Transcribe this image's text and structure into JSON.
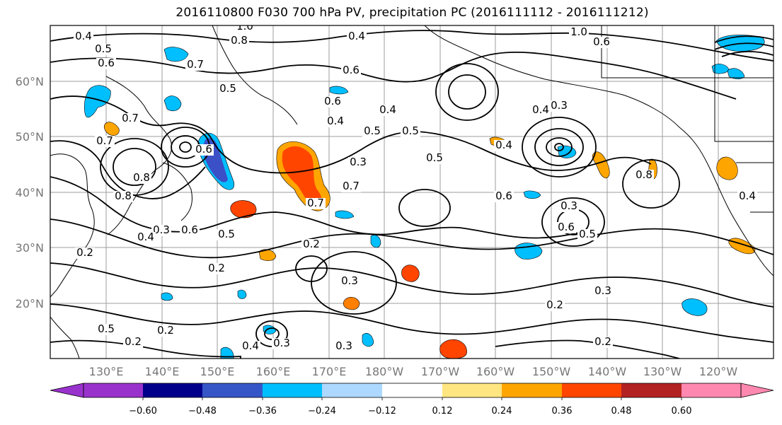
{
  "title": "2016110800 F030 700 hPa PV, precipitation PC (2016111112 - 2016111212)",
  "map": {
    "lat_ticks": [
      "60°N",
      "50°N",
      "40°N",
      "30°N",
      "20°N"
    ],
    "lon_ticks": [
      "130°E",
      "140°E",
      "150°E",
      "160°E",
      "170°E",
      "180°W",
      "170°W",
      "160°W",
      "150°W",
      "140°W",
      "130°W",
      "120°W"
    ],
    "contour_labels": [
      "0.4",
      "0.5",
      "1.0",
      "0.8",
      "0.4",
      "1.0",
      "0.6",
      "0.7",
      "0.6",
      "0.5",
      "0.6",
      "0.6",
      "0.7",
      "0.7",
      "0.6",
      "0.8",
      "0.8",
      "0.4",
      "0.5",
      "0.4",
      "0.5",
      "0.3",
      "0.7",
      "0.5",
      "0.4",
      "0.7",
      "0.6",
      "0.4",
      "0.3",
      "0.6",
      "0.3",
      "0.5",
      "0.3",
      "0.6",
      "0.5",
      "0.4",
      "0.2",
      "0.3",
      "0.2",
      "0.2",
      "0.5",
      "0.2",
      "0.2",
      "0.4",
      "0.3",
      "0.3",
      "0.2",
      "0.2",
      "0.3",
      "0.8",
      "0.4"
    ],
    "colors": {
      "contour": "#000000",
      "coast": "#000000",
      "grid": "#9e9e9e",
      "neg_strong": "#3b4fc7",
      "neg_mid": "#00bfff",
      "neg_weak": "#aadfff",
      "pos_weak": "#ffe680",
      "pos_mid": "#ffa500",
      "pos_strong": "#ff4500"
    }
  },
  "colorbar": {
    "tick_labels": [
      "−0.60",
      "−0.48",
      "−0.36",
      "−0.24",
      "−0.12",
      "0.12",
      "0.24",
      "0.36",
      "0.48",
      "0.60"
    ],
    "colors": [
      "#9932cc",
      "#00008b",
      "#3656c8",
      "#00bfff",
      "#add8ff",
      "#ffffff",
      "#ffe680",
      "#ffa500",
      "#ff4500",
      "#b22222",
      "#ff88b0"
    ]
  }
}
